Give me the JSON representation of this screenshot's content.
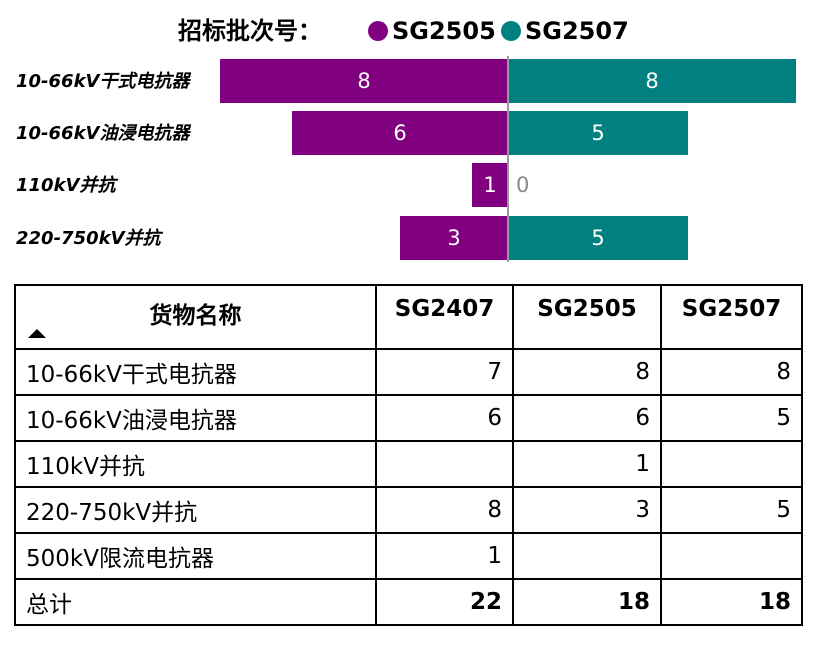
{
  "chart_data": {
    "type": "bar",
    "orientation": "horizontal-diverging",
    "legend_title": "招标批次号：",
    "legend_placement": "top",
    "categories": [
      "10-66kV干式电抗器",
      "10-66kV油浸电抗器",
      "110kV并抗",
      "220-750kV并抗"
    ],
    "series": [
      {
        "name": "SG2505",
        "color": "#800080",
        "values": [
          8,
          6,
          1,
          3
        ]
      },
      {
        "name": "SG2507",
        "color": "#008080",
        "values": [
          8,
          5,
          0,
          5
        ]
      }
    ],
    "xlim": [
      -8,
      8
    ]
  },
  "table": {
    "headers": [
      "货物名称",
      "SG2407",
      "SG2505",
      "SG2507"
    ],
    "rows": [
      [
        "10-66kV干式电抗器",
        "7",
        "8",
        "8"
      ],
      [
        "10-66kV油浸电抗器",
        "6",
        "6",
        "5"
      ],
      [
        "110kV并抗",
        "",
        "1",
        ""
      ],
      [
        "220-750kV并抗",
        "8",
        "3",
        "5"
      ],
      [
        "500kV限流电抗器",
        "1",
        "",
        ""
      ]
    ],
    "total": [
      "总计",
      "22",
      "18",
      "18"
    ]
  }
}
